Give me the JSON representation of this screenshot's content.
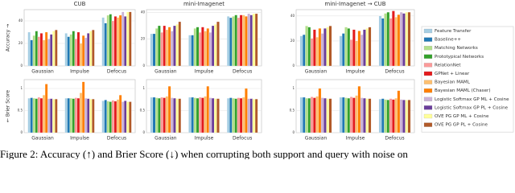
{
  "legend": [
    {
      "name": "Feature Transfer",
      "color": "#a6cee3"
    },
    {
      "name": "Baseline++",
      "color": "#1f78b4"
    },
    {
      "name": "Matching Networks",
      "color": "#b2df8a"
    },
    {
      "name": "Prototypical Networks",
      "color": "#33a02c"
    },
    {
      "name": "RelationNet",
      "color": "#fb9a99"
    },
    {
      "name": "GPNet + Linear",
      "color": "#e31a1c"
    },
    {
      "name": "Bayesian MAML",
      "color": "#fdbf6f"
    },
    {
      "name": "Bayesian MAML (Chaser)",
      "color": "#ff7f00"
    },
    {
      "name": "Logistic Softmax GP ML + Cosine",
      "color": "#cab2d6"
    },
    {
      "name": "Logistic Softmax GP PL + Cosine",
      "color": "#6a3d9a"
    },
    {
      "name": "OVE PG GP ML + Cosine",
      "color": "#ffff99"
    },
    {
      "name": "OVE PG GP PL + Cosine",
      "color": "#b15928"
    }
  ],
  "chart_data": [
    {
      "type": "bar",
      "title": "CUB",
      "ylabel": "Accuracy →",
      "categories": [
        "Gaussian",
        "Impulse",
        "Defocus"
      ],
      "ylim": [
        0,
        50
      ],
      "yticks": [
        0,
        20,
        40
      ],
      "grid": true,
      "series": [
        {
          "values": [
            30,
            29,
            43
          ]
        },
        {
          "values": [
            23,
            26,
            38
          ]
        },
        {
          "values": [
            27,
            28,
            45
          ]
        },
        {
          "values": [
            31,
            31,
            46
          ]
        },
        {
          "values": [
            26,
            24,
            40
          ]
        },
        {
          "values": [
            29,
            30,
            44
          ]
        },
        {
          "values": [
            23,
            20,
            43
          ]
        },
        {
          "values": [
            30,
            27,
            45
          ]
        },
        {
          "values": [
            24,
            25,
            48
          ]
        },
        {
          "values": [
            28,
            29,
            44
          ]
        },
        {
          "values": [
            31,
            31,
            48
          ]
        },
        {
          "values": [
            32,
            32,
            48
          ]
        }
      ]
    },
    {
      "type": "bar",
      "title": "mini-Imagenet",
      "categories": [
        "Gaussian",
        "Impulse",
        "Defocus"
      ],
      "ylim": [
        0,
        42
      ],
      "yticks": [
        0,
        20,
        40
      ],
      "grid": true,
      "series": [
        {
          "values": [
            24,
            23,
            37
          ]
        },
        {
          "values": [
            24,
            23,
            36
          ]
        },
        {
          "values": [
            28,
            28,
            37
          ]
        },
        {
          "values": [
            30,
            29,
            38
          ]
        },
        {
          "values": [
            25,
            25,
            36
          ]
        },
        {
          "values": [
            30,
            29,
            38
          ]
        },
        {
          "values": [
            27,
            26,
            38
          ]
        },
        {
          "values": [
            29,
            28,
            37
          ]
        },
        {
          "values": [
            26,
            25,
            39
          ]
        },
        {
          "values": [
            30,
            30,
            38
          ]
        },
        {
          "values": [
            31,
            31,
            39
          ]
        },
        {
          "values": [
            33,
            33,
            39
          ]
        }
      ]
    },
    {
      "type": "bar",
      "title": "mini-Imagenet → CUB",
      "categories": [
        "Gaussian",
        "Impulse",
        "Defocus"
      ],
      "ylim": [
        0,
        45
      ],
      "yticks": [
        0,
        20,
        40
      ],
      "grid": true,
      "series": [
        {
          "values": [
            24,
            24,
            40
          ]
        },
        {
          "values": [
            25,
            26,
            38
          ]
        },
        {
          "values": [
            32,
            31,
            42
          ]
        },
        {
          "values": [
            31,
            30,
            43
          ]
        },
        {
          "values": [
            22,
            21,
            38
          ]
        },
        {
          "values": [
            29,
            29,
            44
          ]
        },
        {
          "values": [
            23,
            20,
            39
          ]
        },
        {
          "values": [
            30,
            28,
            41
          ]
        },
        {
          "values": [
            26,
            25,
            43
          ]
        },
        {
          "values": [
            30,
            29,
            42
          ]
        },
        {
          "values": [
            31,
            30,
            43
          ]
        },
        {
          "values": [
            32,
            31,
            43
          ]
        }
      ]
    },
    {
      "type": "bar",
      "ylabel": "← Brier Score",
      "categories": [
        "Gaussian",
        "Impulse",
        "Defocus"
      ],
      "ylim": [
        0,
        1.2
      ],
      "yticks": [
        0,
        0.5,
        1
      ],
      "grid": true,
      "series": [
        {
          "values": [
            0.78,
            0.78,
            0.72
          ]
        },
        {
          "values": [
            0.79,
            0.78,
            0.74
          ]
        },
        {
          "values": [
            0.78,
            0.78,
            0.71
          ]
        },
        {
          "values": [
            0.77,
            0.77,
            0.7
          ]
        },
        {
          "values": [
            0.8,
            0.79,
            0.73
          ]
        },
        {
          "values": [
            0.78,
            0.78,
            0.71
          ]
        },
        {
          "values": [
            0.85,
            0.9,
            0.75
          ]
        },
        {
          "values": [
            1.1,
            1.15,
            0.85
          ]
        },
        {
          "values": [
            0.77,
            0.78,
            0.7
          ]
        },
        {
          "values": [
            0.77,
            0.77,
            0.72
          ]
        },
        {
          "values": [
            0.76,
            0.76,
            0.7
          ]
        },
        {
          "values": [
            0.76,
            0.76,
            0.7
          ]
        }
      ]
    },
    {
      "type": "bar",
      "categories": [
        "Gaussian",
        "Impulse",
        "Defocus"
      ],
      "ylim": [
        0,
        1.2
      ],
      "yticks": [
        0,
        0.5,
        1
      ],
      "grid": true,
      "series": [
        {
          "values": [
            0.8,
            0.8,
            0.78
          ]
        },
        {
          "values": [
            0.8,
            0.8,
            0.79
          ]
        },
        {
          "values": [
            0.79,
            0.79,
            0.78
          ]
        },
        {
          "values": [
            0.78,
            0.78,
            0.77
          ]
        },
        {
          "values": [
            0.8,
            0.8,
            0.79
          ]
        },
        {
          "values": [
            0.79,
            0.79,
            0.78
          ]
        },
        {
          "values": [
            0.82,
            0.82,
            0.8
          ]
        },
        {
          "values": [
            1.05,
            1.05,
            1.0
          ]
        },
        {
          "values": [
            0.79,
            0.79,
            0.77
          ]
        },
        {
          "values": [
            0.78,
            0.78,
            0.77
          ]
        },
        {
          "values": [
            0.77,
            0.77,
            0.76
          ]
        },
        {
          "values": [
            0.77,
            0.77,
            0.76
          ]
        }
      ]
    },
    {
      "type": "bar",
      "categories": [
        "Gaussian",
        "Impulse",
        "Defocus"
      ],
      "ylim": [
        0,
        1.2
      ],
      "yticks": [
        0,
        0.5,
        1
      ],
      "grid": true,
      "series": [
        {
          "values": [
            0.8,
            0.8,
            0.76
          ]
        },
        {
          "values": [
            0.8,
            0.8,
            0.77
          ]
        },
        {
          "values": [
            0.78,
            0.79,
            0.75
          ]
        },
        {
          "values": [
            0.78,
            0.78,
            0.74
          ]
        },
        {
          "values": [
            0.81,
            0.81,
            0.77
          ]
        },
        {
          "values": [
            0.79,
            0.79,
            0.75
          ]
        },
        {
          "values": [
            0.82,
            0.84,
            0.78
          ]
        },
        {
          "values": [
            1.0,
            1.05,
            0.95
          ]
        },
        {
          "values": [
            0.79,
            0.79,
            0.75
          ]
        },
        {
          "values": [
            0.78,
            0.78,
            0.74
          ]
        },
        {
          "values": [
            0.77,
            0.77,
            0.74
          ]
        },
        {
          "values": [
            0.77,
            0.77,
            0.74
          ]
        }
      ]
    }
  ],
  "caption": "Figure 2: Accuracy (↑) and Brier Score (↓) when corrupting both support and query with noise on"
}
